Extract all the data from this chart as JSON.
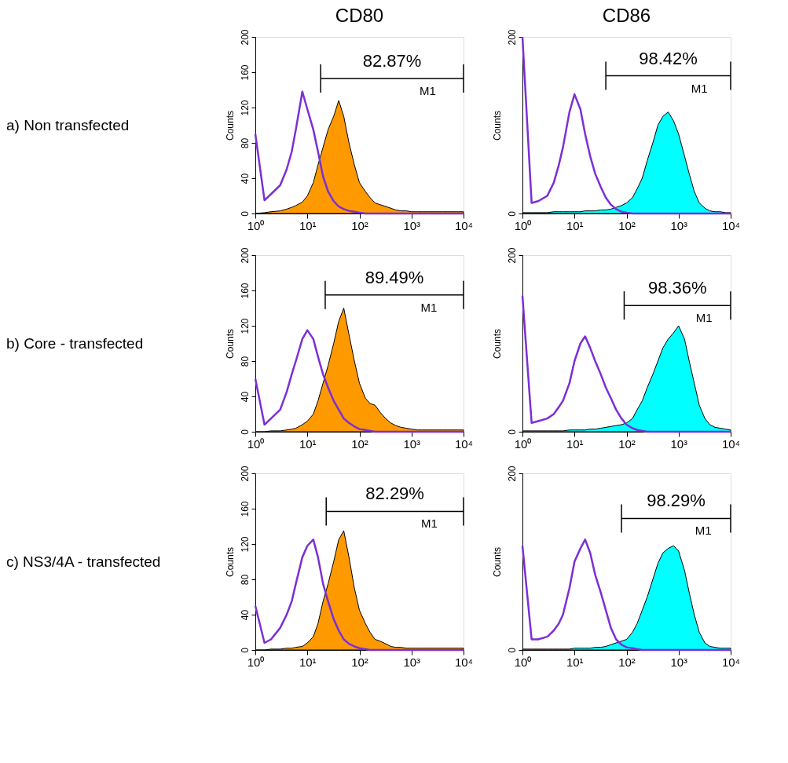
{
  "chart_data": [
    {
      "type": "area",
      "title": "CD80",
      "ylabel": "Counts",
      "annotations": [
        "a) Non transfected",
        "82.87%",
        "M1"
      ],
      "x": [
        1,
        1.5,
        2,
        3,
        4,
        5,
        6,
        8,
        10,
        13,
        16,
        20,
        25,
        32,
        40,
        50,
        63,
        80,
        100,
        130,
        160,
        200,
        250,
        320,
        400,
        500,
        630,
        800,
        1000,
        1300,
        1600,
        2000,
        2500,
        3200,
        4000,
        5000,
        6300,
        8000,
        10000
      ],
      "series": [
        {
          "type": "line",
          "color": "#7b2fd6",
          "values": [
            90,
            15,
            22,
            32,
            50,
            70,
            95,
            138,
            118,
            95,
            70,
            42,
            25,
            14,
            8,
            5,
            3,
            2,
            1,
            0,
            0,
            0,
            0,
            0,
            0,
            0,
            0,
            0,
            0,
            0,
            0,
            0,
            0,
            0,
            0,
            0,
            0,
            0,
            0
          ]
        },
        {
          "color": "#ff9900",
          "values": [
            0,
            1,
            2,
            3,
            5,
            7,
            9,
            13,
            20,
            35,
            55,
            75,
            95,
            110,
            128,
            110,
            80,
            55,
            35,
            25,
            18,
            12,
            10,
            8,
            6,
            4,
            3,
            3,
            2,
            2,
            2,
            2,
            2,
            2,
            2,
            2,
            2,
            2,
            2
          ]
        },
        {
          "type": "line",
          "color": "#000000",
          "x": [
            18,
            10000
          ],
          "values": [
            153,
            153
          ],
          "errors": [
            16,
            16
          ]
        }
      ],
      "xlim": [
        1,
        10000
      ],
      "xticks": [
        {
          "value": 1,
          "label": "10⁰"
        },
        {
          "value": 10,
          "label": "10¹"
        },
        {
          "value": 100,
          "label": "10²"
        },
        {
          "value": 1000,
          "label": "10³"
        },
        {
          "value": 10000,
          "label": "10⁴"
        }
      ],
      "ylim": [
        0,
        200
      ],
      "yticks": [
        0,
        40,
        80,
        120,
        160,
        200
      ],
      "log": "x"
    },
    {
      "type": "area",
      "title": "CD86",
      "ylabel": "Counts",
      "annotations": [
        "98.42%",
        "M1"
      ],
      "x": [
        1,
        1.5,
        2,
        3,
        4,
        5,
        6,
        8,
        10,
        13,
        16,
        20,
        25,
        32,
        40,
        50,
        63,
        80,
        100,
        130,
        160,
        200,
        250,
        320,
        400,
        500,
        630,
        800,
        1000,
        1300,
        1600,
        2000,
        2500,
        3200,
        4000,
        5000,
        6300,
        8000,
        10000
      ],
      "series": [
        {
          "type": "line",
          "color": "#7b2fd6",
          "values": [
            200,
            12,
            14,
            20,
            35,
            55,
            75,
            115,
            135,
            118,
            90,
            65,
            45,
            30,
            18,
            10,
            5,
            2,
            1,
            0,
            0,
            0,
            0,
            0,
            0,
            0,
            0,
            0,
            0,
            0,
            0,
            0,
            0,
            0,
            0,
            0,
            0,
            0,
            0
          ]
        },
        {
          "color": "#00ffff",
          "values": [
            1,
            1,
            1,
            1,
            2,
            2,
            2,
            2,
            2,
            2,
            3,
            3,
            3,
            4,
            4,
            5,
            7,
            9,
            12,
            18,
            28,
            40,
            60,
            80,
            100,
            110,
            115,
            105,
            90,
            65,
            45,
            25,
            12,
            6,
            3,
            2,
            2,
            1,
            1
          ]
        },
        {
          "type": "line",
          "color": "#000000",
          "x": [
            40,
            10000
          ],
          "values": [
            156,
            156
          ],
          "errors": [
            16,
            16
          ]
        }
      ],
      "xlim": [
        1,
        10000
      ],
      "xticks": [
        {
          "value": 1,
          "label": "10⁰"
        },
        {
          "value": 10,
          "label": "10¹"
        },
        {
          "value": 100,
          "label": "10²"
        },
        {
          "value": 1000,
          "label": "10³"
        },
        {
          "value": 10000,
          "label": "10⁴"
        }
      ],
      "ylim": [
        0,
        200
      ],
      "yticks": [
        0,
        200
      ],
      "log": "x"
    },
    {
      "type": "area",
      "ylabel": "Counts",
      "annotations": [
        "b) Core - transfected",
        "89.49%",
        "M1"
      ],
      "x": [
        1,
        1.5,
        2,
        3,
        4,
        5,
        6,
        8,
        10,
        13,
        16,
        20,
        25,
        32,
        40,
        50,
        63,
        80,
        100,
        130,
        160,
        200,
        250,
        320,
        400,
        500,
        630,
        800,
        1000,
        1300,
        1600,
        2000,
        2500,
        3200,
        4000,
        5000,
        6300,
        8000,
        10000
      ],
      "series": [
        {
          "type": "line",
          "color": "#7b2fd6",
          "values": [
            60,
            8,
            15,
            25,
            45,
            65,
            80,
            105,
            115,
            105,
            85,
            65,
            50,
            35,
            25,
            15,
            10,
            6,
            3,
            2,
            1,
            0,
            0,
            0,
            0,
            0,
            0,
            0,
            0,
            0,
            0,
            0,
            0,
            0,
            0,
            0,
            0,
            0,
            0
          ]
        },
        {
          "color": "#ff9900",
          "values": [
            0,
            0,
            1,
            1,
            2,
            3,
            4,
            8,
            12,
            20,
            35,
            55,
            75,
            100,
            125,
            140,
            110,
            80,
            55,
            38,
            32,
            30,
            22,
            15,
            10,
            7,
            5,
            4,
            3,
            2,
            2,
            2,
            2,
            2,
            2,
            2,
            2,
            2,
            2
          ]
        },
        {
          "type": "line",
          "color": "#000000",
          "x": [
            22,
            10000
          ],
          "values": [
            155,
            155
          ],
          "errors": [
            16,
            16
          ]
        }
      ],
      "xlim": [
        1,
        10000
      ],
      "xticks": [
        {
          "value": 1,
          "label": "10⁰"
        },
        {
          "value": 10,
          "label": "10¹"
        },
        {
          "value": 100,
          "label": "10²"
        },
        {
          "value": 1000,
          "label": "10³"
        },
        {
          "value": 10000,
          "label": "10⁴"
        }
      ],
      "ylim": [
        0,
        200
      ],
      "yticks": [
        0,
        40,
        80,
        120,
        160,
        200
      ],
      "log": "x"
    },
    {
      "type": "area",
      "ylabel": "Counts",
      "annotations": [
        "98.36%",
        "M1"
      ],
      "x": [
        1,
        1.5,
        2,
        3,
        4,
        5,
        6,
        8,
        10,
        13,
        16,
        20,
        25,
        32,
        40,
        50,
        63,
        80,
        100,
        130,
        160,
        200,
        250,
        320,
        400,
        500,
        630,
        800,
        1000,
        1300,
        1600,
        2000,
        2500,
        3200,
        4000,
        5000,
        6300,
        8000,
        10000
      ],
      "series": [
        {
          "type": "line",
          "color": "#7b2fd6",
          "values": [
            154,
            10,
            12,
            15,
            20,
            28,
            35,
            55,
            80,
            100,
            108,
            95,
            80,
            65,
            50,
            38,
            25,
            15,
            8,
            4,
            2,
            1,
            0,
            0,
            0,
            0,
            0,
            0,
            0,
            0,
            0,
            0,
            0,
            0,
            0,
            0,
            0,
            0,
            0
          ]
        },
        {
          "color": "#00ffff",
          "values": [
            1,
            1,
            1,
            1,
            1,
            1,
            1,
            2,
            2,
            2,
            2,
            3,
            3,
            4,
            5,
            6,
            7,
            8,
            10,
            15,
            25,
            35,
            50,
            65,
            80,
            95,
            105,
            112,
            120,
            105,
            80,
            55,
            30,
            15,
            8,
            5,
            4,
            3,
            2
          ]
        },
        {
          "type": "line",
          "color": "#000000",
          "x": [
            90,
            10000
          ],
          "values": [
            143,
            143
          ],
          "errors": [
            16,
            16
          ]
        }
      ],
      "xlim": [
        1,
        10000
      ],
      "xticks": [
        {
          "value": 1,
          "label": "10⁰"
        },
        {
          "value": 10,
          "label": "10¹"
        },
        {
          "value": 100,
          "label": "10²"
        },
        {
          "value": 1000,
          "label": "10³"
        },
        {
          "value": 10000,
          "label": "10⁴"
        }
      ],
      "ylim": [
        0,
        200
      ],
      "yticks": [
        0,
        200
      ],
      "log": "x"
    },
    {
      "type": "area",
      "ylabel": "Counts",
      "annotations": [
        "c) NS3/4A - transfected",
        "82.29%",
        "M1"
      ],
      "x": [
        1,
        1.5,
        2,
        3,
        4,
        5,
        6,
        8,
        10,
        13,
        16,
        20,
        25,
        32,
        40,
        50,
        63,
        80,
        100,
        130,
        160,
        200,
        250,
        320,
        400,
        500,
        630,
        800,
        1000,
        1300,
        1600,
        2000,
        2500,
        3200,
        4000,
        5000,
        6300,
        8000,
        10000
      ],
      "series": [
        {
          "type": "line",
          "color": "#7b2fd6",
          "values": [
            50,
            8,
            12,
            25,
            40,
            55,
            75,
            105,
            118,
            125,
            105,
            75,
            55,
            35,
            22,
            12,
            7,
            4,
            2,
            1,
            0,
            0,
            0,
            0,
            0,
            0,
            0,
            0,
            0,
            0,
            0,
            0,
            0,
            0,
            0,
            0,
            0,
            0,
            0
          ]
        },
        {
          "color": "#ff9900",
          "values": [
            0,
            0,
            1,
            1,
            2,
            2,
            3,
            4,
            8,
            15,
            30,
            55,
            75,
            100,
            125,
            135,
            105,
            70,
            45,
            30,
            20,
            12,
            10,
            7,
            4,
            3,
            3,
            2,
            2,
            2,
            2,
            2,
            2,
            2,
            2,
            2,
            2,
            2,
            2
          ]
        },
        {
          "type": "line",
          "color": "#000000",
          "x": [
            23,
            10000
          ],
          "values": [
            157,
            157
          ],
          "errors": [
            16,
            16
          ]
        }
      ],
      "xlim": [
        1,
        10000
      ],
      "xticks": [
        {
          "value": 1,
          "label": "10⁰"
        },
        {
          "value": 10,
          "label": "10¹"
        },
        {
          "value": 100,
          "label": "10²"
        },
        {
          "value": 1000,
          "label": "10³"
        },
        {
          "value": 10000,
          "label": "10⁴"
        }
      ],
      "ylim": [
        0,
        200
      ],
      "yticks": [
        0,
        40,
        80,
        120,
        160,
        200
      ],
      "log": "x"
    },
    {
      "type": "area",
      "ylabel": "Counts",
      "annotations": [
        "98.29%",
        "M1"
      ],
      "x": [
        1,
        1.5,
        2,
        3,
        4,
        5,
        6,
        8,
        10,
        13,
        16,
        20,
        25,
        32,
        40,
        50,
        63,
        80,
        100,
        130,
        160,
        200,
        250,
        320,
        400,
        500,
        630,
        800,
        1000,
        1300,
        1600,
        2000,
        2500,
        3200,
        4000,
        5000,
        6300,
        8000,
        10000
      ],
      "series": [
        {
          "type": "line",
          "color": "#7b2fd6",
          "values": [
            118,
            12,
            12,
            15,
            22,
            30,
            40,
            70,
            100,
            115,
            125,
            110,
            85,
            65,
            45,
            25,
            12,
            6,
            3,
            2,
            1,
            0,
            0,
            0,
            0,
            0,
            0,
            0,
            0,
            0,
            0,
            0,
            0,
            0,
            0,
            0,
            0,
            0,
            0
          ]
        },
        {
          "color": "#00ffff",
          "values": [
            1,
            1,
            1,
            1,
            1,
            1,
            1,
            1,
            2,
            2,
            2,
            2,
            3,
            3,
            4,
            6,
            8,
            10,
            12,
            20,
            30,
            45,
            60,
            80,
            98,
            110,
            115,
            118,
            112,
            90,
            65,
            40,
            20,
            8,
            4,
            3,
            2,
            2,
            2
          ]
        },
        {
          "type": "line",
          "color": "#000000",
          "x": [
            80,
            10000
          ],
          "values": [
            149,
            149
          ],
          "errors": [
            16,
            16
          ]
        }
      ],
      "xlim": [
        1,
        10000
      ],
      "xticks": [
        {
          "value": 1,
          "label": "10⁰"
        },
        {
          "value": 10,
          "label": "10¹"
        },
        {
          "value": 100,
          "label": "10²"
        },
        {
          "value": 1000,
          "label": "10³"
        },
        {
          "value": 10000,
          "label": "10⁴"
        }
      ],
      "ylim": [
        0,
        200
      ],
      "yticks": [
        0,
        200
      ],
      "log": "x"
    }
  ]
}
